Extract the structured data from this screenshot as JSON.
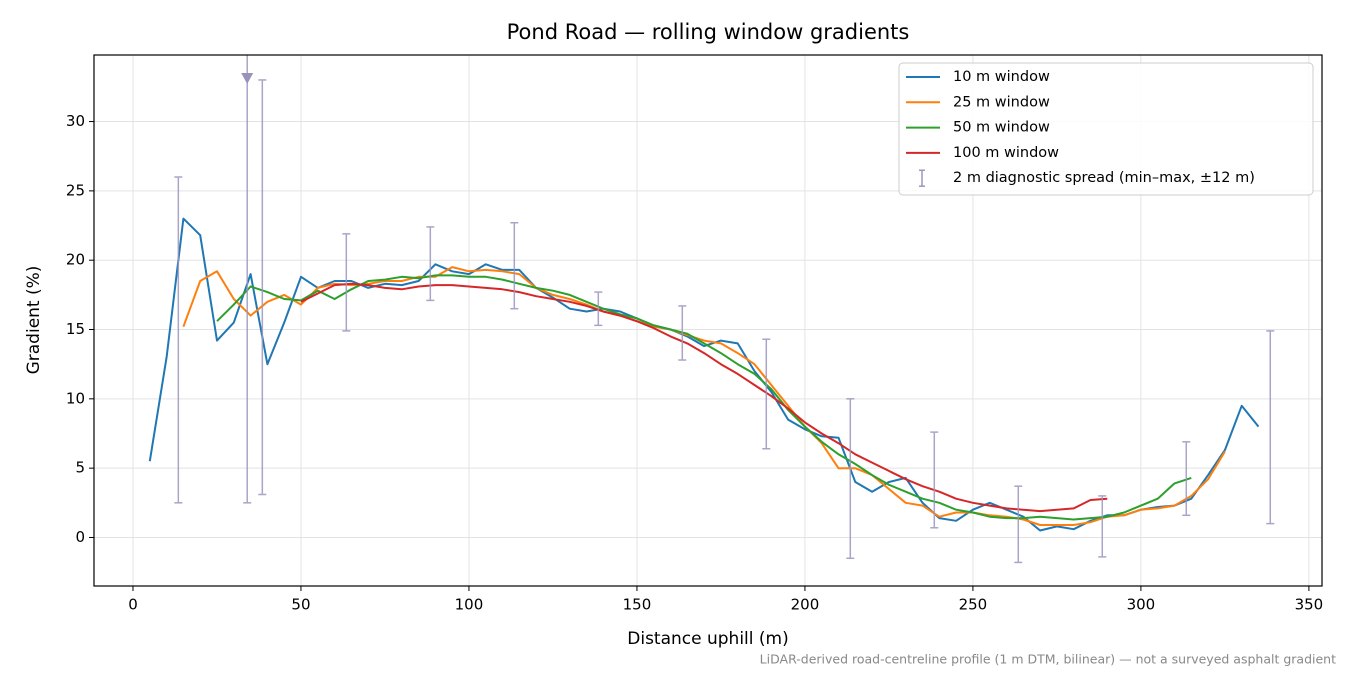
{
  "chart_data": {
    "type": "line",
    "title": "Pond Road — rolling window gradients",
    "xlabel": "Distance uphill (m)",
    "ylabel": "Gradient (%)",
    "footnote": "LiDAR-derived road-centreline profile (1 m DTM, bilinear) — not a surveyed asphalt gradient",
    "xlim": [
      -11.6,
      353.9
    ],
    "ylim": [
      -3.5,
      34.8
    ],
    "xticks": [
      0,
      50,
      100,
      150,
      200,
      250,
      300,
      350
    ],
    "yticks": [
      0,
      5,
      10,
      15,
      20,
      25,
      30
    ],
    "grid": true,
    "legend": "upper right",
    "x": [
      5,
      10,
      15,
      20,
      25,
      30,
      35,
      40,
      45,
      50,
      55,
      60,
      65,
      70,
      75,
      80,
      85,
      90,
      95,
      100,
      105,
      110,
      115,
      120,
      125,
      130,
      135,
      140,
      145,
      150,
      155,
      160,
      165,
      170,
      175,
      180,
      185,
      190,
      195,
      200,
      205,
      210,
      215,
      220,
      225,
      230,
      235,
      240,
      245,
      250,
      255,
      260,
      265,
      270,
      275,
      280,
      285,
      290,
      295,
      300,
      305,
      310,
      315,
      320,
      325,
      330,
      335
    ],
    "series": [
      {
        "name": "10 m window",
        "color": "#1f77b4",
        "values": [
          5.5,
          13,
          23,
          21.8,
          14.2,
          15.5,
          19,
          12.5,
          15.5,
          18.8,
          18,
          18.5,
          18.5,
          18,
          18.3,
          18.2,
          18.5,
          19.7,
          19.2,
          19,
          19.7,
          19.3,
          19.3,
          18,
          17.3,
          16.5,
          16.3,
          16.5,
          16.3,
          15.8,
          15.3,
          15,
          14.5,
          13.8,
          14.2,
          14,
          12,
          10.5,
          8.5,
          7.8,
          7.3,
          7.2,
          4,
          3.3,
          4,
          4.3,
          2.5,
          1.4,
          1.2,
          2,
          2.5,
          2,
          1.5,
          0.5,
          0.8,
          0.6,
          1.2,
          1.6,
          1.6,
          2,
          2.2,
          2.3,
          2.8,
          4.5,
          6.3,
          9.5,
          8
        ]
      },
      {
        "name": "25 m window",
        "color": "#ff7f0e",
        "values": [
          null,
          null,
          15.2,
          18.5,
          19.2,
          17.2,
          16,
          17,
          17.5,
          16.8,
          18,
          18.3,
          18.2,
          18.3,
          18.5,
          18.5,
          18.8,
          18.8,
          19.5,
          19.2,
          19.3,
          19.2,
          19,
          18,
          17.5,
          17.2,
          16.8,
          16.3,
          16,
          15.6,
          15.2,
          15,
          14.6,
          14.2,
          14,
          13.3,
          12.5,
          11,
          9.5,
          8,
          6.8,
          5,
          5,
          4.5,
          3.5,
          2.5,
          2.3,
          1.5,
          1.8,
          1.8,
          1.6,
          1.5,
          1.3,
          0.9,
          0.9,
          0.9,
          1.1,
          1.5,
          1.6,
          2,
          2.1,
          2.3,
          3,
          4.2,
          6.2,
          null,
          null
        ]
      },
      {
        "name": "50 m window",
        "color": "#2ca02c",
        "values": [
          null,
          null,
          null,
          null,
          15.6,
          16.8,
          18.1,
          17.7,
          17.2,
          17.1,
          17.8,
          17.2,
          17.9,
          18.5,
          18.6,
          18.8,
          18.7,
          18.9,
          18.9,
          18.8,
          18.8,
          18.6,
          18.3,
          18,
          17.8,
          17.5,
          17,
          16.5,
          16.1,
          15.8,
          15.3,
          15,
          14.7,
          14,
          13.3,
          12.5,
          11.8,
          10.7,
          9.2,
          8,
          6.9,
          6,
          5.3,
          4.5,
          3.8,
          3.3,
          2.8,
          2.5,
          2,
          1.8,
          1.5,
          1.4,
          1.4,
          1.5,
          1.4,
          1.3,
          1.4,
          1.5,
          1.8,
          2.3,
          2.8,
          3.9,
          4.3,
          null,
          null,
          null,
          null
        ]
      },
      {
        "name": "100 m window",
        "color": "#d62728",
        "values": [
          null,
          null,
          null,
          null,
          null,
          null,
          null,
          null,
          null,
          17,
          17.6,
          18.2,
          18.3,
          18.2,
          18,
          17.9,
          18.1,
          18.2,
          18.2,
          18.1,
          18,
          17.9,
          17.7,
          17.4,
          17.2,
          17,
          16.7,
          16.3,
          16,
          15.6,
          15.1,
          14.5,
          14,
          13.3,
          12.5,
          11.8,
          11,
          10.2,
          9.3,
          8.3,
          7.5,
          6.8,
          6,
          5.4,
          4.8,
          4.2,
          3.7,
          3.3,
          2.8,
          2.5,
          2.3,
          2.1,
          2,
          1.9,
          2,
          2.1,
          2.7,
          2.8,
          null,
          null,
          null,
          null,
          null,
          null,
          null,
          null,
          null
        ]
      }
    ],
    "error_bars": {
      "name": "2 m diagnostic spread (min–max, ±12 m)",
      "color": "#9b96c0",
      "x": [
        13.5,
        34,
        38.5,
        63.5,
        88.5,
        113.5,
        138.5,
        163.5,
        188.5,
        213.5,
        238.5,
        263.5,
        288.5,
        313.5,
        338.5
      ],
      "low": [
        2.5,
        2.5,
        3.1,
        14.9,
        17.1,
        16.5,
        15.3,
        12.8,
        6.4,
        -1.5,
        0.7,
        -1.8,
        -1.4,
        1.6,
        1.0
      ],
      "high": [
        26,
        null,
        33,
        21.9,
        22.4,
        22.7,
        17.7,
        16.7,
        14.3,
        10.0,
        7.6,
        3.7,
        3.0,
        6.9,
        14.9
      ]
    }
  }
}
